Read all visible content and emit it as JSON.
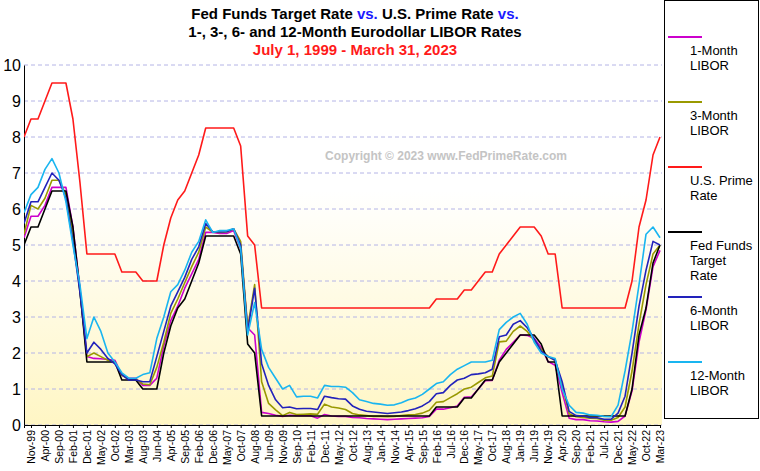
{
  "chart_data": {
    "type": "line",
    "title": "Fed Funds Target Rate vs. U.S. Prime Rate vs.",
    "subtitle": "1-, 3-, 6- and 12-Month Eurodollar LIBOR Rates",
    "annotations": [
      "July 1, 1999 - March 31, 2023",
      "Copyright © 2023 www.FedPrimeRate.com"
    ],
    "categories": [
      null,
      "Nov-99",
      null,
      "Apr-00",
      null,
      "Sep-00",
      null,
      "Feb-01",
      null,
      "Dec-01",
      null,
      "May-02",
      null,
      "Oct-02",
      null,
      "Mar-03",
      null,
      "Aug-03",
      null,
      "Jun-04",
      null,
      "Apr-05",
      null,
      "Sep-05",
      null,
      "Feb-06",
      null,
      "Dec-06",
      null,
      "May-07",
      null,
      "Oct-07",
      null,
      "Aug-08",
      null,
      "Jun-09",
      null,
      "Nov-09",
      null,
      "Sep-10",
      null,
      "Feb-11",
      null,
      "Dec-11",
      null,
      "May-12",
      null,
      "Oct-12",
      null,
      "Aug-13",
      null,
      "Jan-14",
      null,
      "Nov-14",
      null,
      "Apr-15",
      null,
      "Sep-15",
      null,
      "Feb-16",
      null,
      "Jul-16",
      null,
      "Dec-16",
      null,
      "May-17",
      null,
      "Oct-17",
      null,
      "Aug-18",
      null,
      "Jan-19",
      null,
      "Jun-19",
      null,
      "Nov-19",
      null,
      "Apr-20",
      null,
      "Sep-20",
      null,
      "Feb-21",
      null,
      "Jul-21",
      null,
      "Dec-21",
      null,
      "May-22",
      null,
      "Oct-22",
      null,
      "Mar-23"
    ],
    "series": [
      {
        "name": "1-Month LIBOR",
        "color": "#cc00cc",
        "values": [
          5.2,
          5.8,
          5.8,
          6.1,
          6.6,
          6.6,
          6.6,
          5.5,
          3.8,
          1.9,
          1.85,
          1.84,
          1.82,
          1.8,
          1.38,
          1.3,
          1.3,
          1.1,
          1.1,
          1.3,
          2.2,
          2.9,
          3.3,
          3.8,
          4.2,
          4.6,
          5.35,
          5.35,
          5.32,
          5.32,
          5.4,
          4.9,
          2.7,
          2.5,
          0.35,
          0.32,
          0.27,
          0.24,
          0.27,
          0.26,
          0.26,
          0.26,
          0.19,
          0.29,
          0.25,
          0.24,
          0.24,
          0.21,
          0.2,
          0.18,
          0.17,
          0.16,
          0.15,
          0.16,
          0.17,
          0.18,
          0.19,
          0.2,
          0.24,
          0.44,
          0.44,
          0.48,
          0.53,
          0.77,
          0.78,
          1.0,
          1.23,
          1.24,
          1.8,
          2.1,
          2.3,
          2.5,
          2.49,
          2.4,
          2.15,
          1.76,
          1.66,
          0.9,
          0.19,
          0.15,
          0.15,
          0.12,
          0.11,
          0.09,
          0.08,
          0.1,
          0.25,
          0.95,
          2.3,
          3.2,
          4.4,
          4.85
        ]
      },
      {
        "name": "3-Month LIBOR",
        "color": "#999900",
        "values": [
          5.3,
          6.1,
          6.0,
          6.3,
          6.8,
          6.8,
          6.4,
          5.3,
          3.7,
          1.9,
          2.0,
          1.9,
          1.8,
          1.75,
          1.38,
          1.28,
          1.27,
          1.14,
          1.12,
          1.6,
          2.3,
          3.1,
          3.5,
          3.95,
          4.4,
          4.8,
          5.5,
          5.36,
          5.35,
          5.36,
          5.45,
          5.1,
          2.7,
          3.9,
          1.2,
          0.6,
          0.42,
          0.26,
          0.35,
          0.29,
          0.3,
          0.31,
          0.3,
          0.58,
          0.5,
          0.47,
          0.43,
          0.32,
          0.28,
          0.26,
          0.24,
          0.24,
          0.23,
          0.24,
          0.26,
          0.28,
          0.29,
          0.33,
          0.41,
          0.63,
          0.65,
          0.76,
          0.87,
          1.0,
          1.05,
          1.18,
          1.31,
          1.36,
          2.31,
          2.33,
          2.6,
          2.75,
          2.6,
          2.35,
          2.1,
          1.9,
          1.8,
          1.1,
          0.31,
          0.23,
          0.21,
          0.19,
          0.18,
          0.13,
          0.13,
          0.21,
          0.5,
          1.5,
          2.8,
          3.9,
          4.75,
          5.0
        ]
      },
      {
        "name": "U.S. Prime Rate",
        "color": "#ff1a1a",
        "values": [
          8.0,
          8.5,
          8.5,
          9.0,
          9.5,
          9.5,
          9.5,
          8.5,
          6.75,
          4.75,
          4.75,
          4.75,
          4.75,
          4.75,
          4.25,
          4.25,
          4.25,
          4.0,
          4.0,
          4.0,
          5.0,
          5.75,
          6.25,
          6.5,
          7.0,
          7.5,
          8.25,
          8.25,
          8.25,
          8.25,
          8.25,
          7.75,
          5.25,
          5.0,
          3.25,
          3.25,
          3.25,
          3.25,
          3.25,
          3.25,
          3.25,
          3.25,
          3.25,
          3.25,
          3.25,
          3.25,
          3.25,
          3.25,
          3.25,
          3.25,
          3.25,
          3.25,
          3.25,
          3.25,
          3.25,
          3.25,
          3.25,
          3.25,
          3.25,
          3.5,
          3.5,
          3.5,
          3.5,
          3.75,
          3.75,
          4.0,
          4.25,
          4.25,
          4.75,
          5.0,
          5.25,
          5.5,
          5.5,
          5.5,
          5.25,
          4.75,
          4.75,
          3.25,
          3.25,
          3.25,
          3.25,
          3.25,
          3.25,
          3.25,
          3.25,
          3.25,
          3.25,
          4.0,
          5.5,
          6.25,
          7.5,
          8.0
        ]
      },
      {
        "name": "Fed Funds Target Rate",
        "color": "#000000",
        "values": [
          5.0,
          5.5,
          5.5,
          6.0,
          6.5,
          6.5,
          6.5,
          5.5,
          3.75,
          1.75,
          1.75,
          1.75,
          1.75,
          1.75,
          1.25,
          1.25,
          1.25,
          1.0,
          1.0,
          1.0,
          2.0,
          2.75,
          3.25,
          3.5,
          4.0,
          4.5,
          5.25,
          5.25,
          5.25,
          5.25,
          5.25,
          4.75,
          2.25,
          2.0,
          0.25,
          0.25,
          0.25,
          0.25,
          0.25,
          0.25,
          0.25,
          0.25,
          0.25,
          0.25,
          0.25,
          0.25,
          0.25,
          0.25,
          0.25,
          0.25,
          0.25,
          0.25,
          0.25,
          0.25,
          0.25,
          0.25,
          0.25,
          0.25,
          0.25,
          0.5,
          0.5,
          0.5,
          0.5,
          0.75,
          0.75,
          1.0,
          1.25,
          1.25,
          1.75,
          2.0,
          2.25,
          2.5,
          2.5,
          2.5,
          2.25,
          1.75,
          1.75,
          0.25,
          0.25,
          0.25,
          0.25,
          0.25,
          0.25,
          0.25,
          0.25,
          0.25,
          0.25,
          1.0,
          2.5,
          3.25,
          4.5,
          5.0
        ]
      },
      {
        "name": "6-Month LIBOR",
        "color": "#2222bb",
        "values": [
          5.6,
          6.2,
          6.2,
          6.6,
          7.0,
          6.8,
          6.3,
          5.1,
          3.7,
          2.0,
          2.3,
          2.1,
          1.85,
          1.7,
          1.4,
          1.25,
          1.25,
          1.2,
          1.2,
          1.9,
          2.6,
          3.3,
          3.7,
          4.1,
          4.6,
          4.95,
          5.6,
          5.37,
          5.36,
          5.37,
          5.45,
          5.0,
          2.6,
          3.8,
          1.7,
          1.1,
          0.7,
          0.48,
          0.5,
          0.45,
          0.46,
          0.46,
          0.43,
          0.8,
          0.76,
          0.73,
          0.72,
          0.53,
          0.44,
          0.38,
          0.36,
          0.34,
          0.32,
          0.34,
          0.36,
          0.4,
          0.45,
          0.53,
          0.65,
          0.87,
          0.9,
          1.1,
          1.25,
          1.3,
          1.4,
          1.42,
          1.45,
          1.55,
          2.45,
          2.5,
          2.8,
          2.9,
          2.7,
          2.4,
          2.05,
          1.9,
          1.8,
          1.2,
          0.38,
          0.26,
          0.25,
          0.2,
          0.2,
          0.16,
          0.16,
          0.33,
          0.8,
          2.0,
          3.3,
          4.3,
          5.1,
          5.0
        ]
      },
      {
        "name": "12-Month LIBOR",
        "color": "#19b5f0",
        "values": [
          5.9,
          6.4,
          6.6,
          7.1,
          7.4,
          7.0,
          6.2,
          5.0,
          3.9,
          2.4,
          3.0,
          2.6,
          2.0,
          1.75,
          1.45,
          1.3,
          1.3,
          1.4,
          1.45,
          2.4,
          3.0,
          3.7,
          3.9,
          4.3,
          4.8,
          5.1,
          5.7,
          5.35,
          5.4,
          5.4,
          5.45,
          4.9,
          2.5,
          3.4,
          2.1,
          1.6,
          1.3,
          1.0,
          1.1,
          0.78,
          0.8,
          0.8,
          0.75,
          1.1,
          1.07,
          1.07,
          1.05,
          0.9,
          0.7,
          0.65,
          0.6,
          0.58,
          0.55,
          0.56,
          0.62,
          0.7,
          0.75,
          0.85,
          1.0,
          1.15,
          1.2,
          1.4,
          1.55,
          1.65,
          1.75,
          1.75,
          1.75,
          1.8,
          2.65,
          2.85,
          3.0,
          3.1,
          2.8,
          2.3,
          2.0,
          1.9,
          1.85,
          1.0,
          0.55,
          0.35,
          0.33,
          0.28,
          0.27,
          0.24,
          0.23,
          0.55,
          1.5,
          2.6,
          3.9,
          5.3,
          5.5,
          5.2
        ]
      }
    ],
    "ylim": [
      0,
      10
    ],
    "yticks": [
      0,
      1,
      2,
      3,
      4,
      5,
      6,
      7,
      8,
      9,
      10
    ],
    "grid": true,
    "legend": "right"
  }
}
